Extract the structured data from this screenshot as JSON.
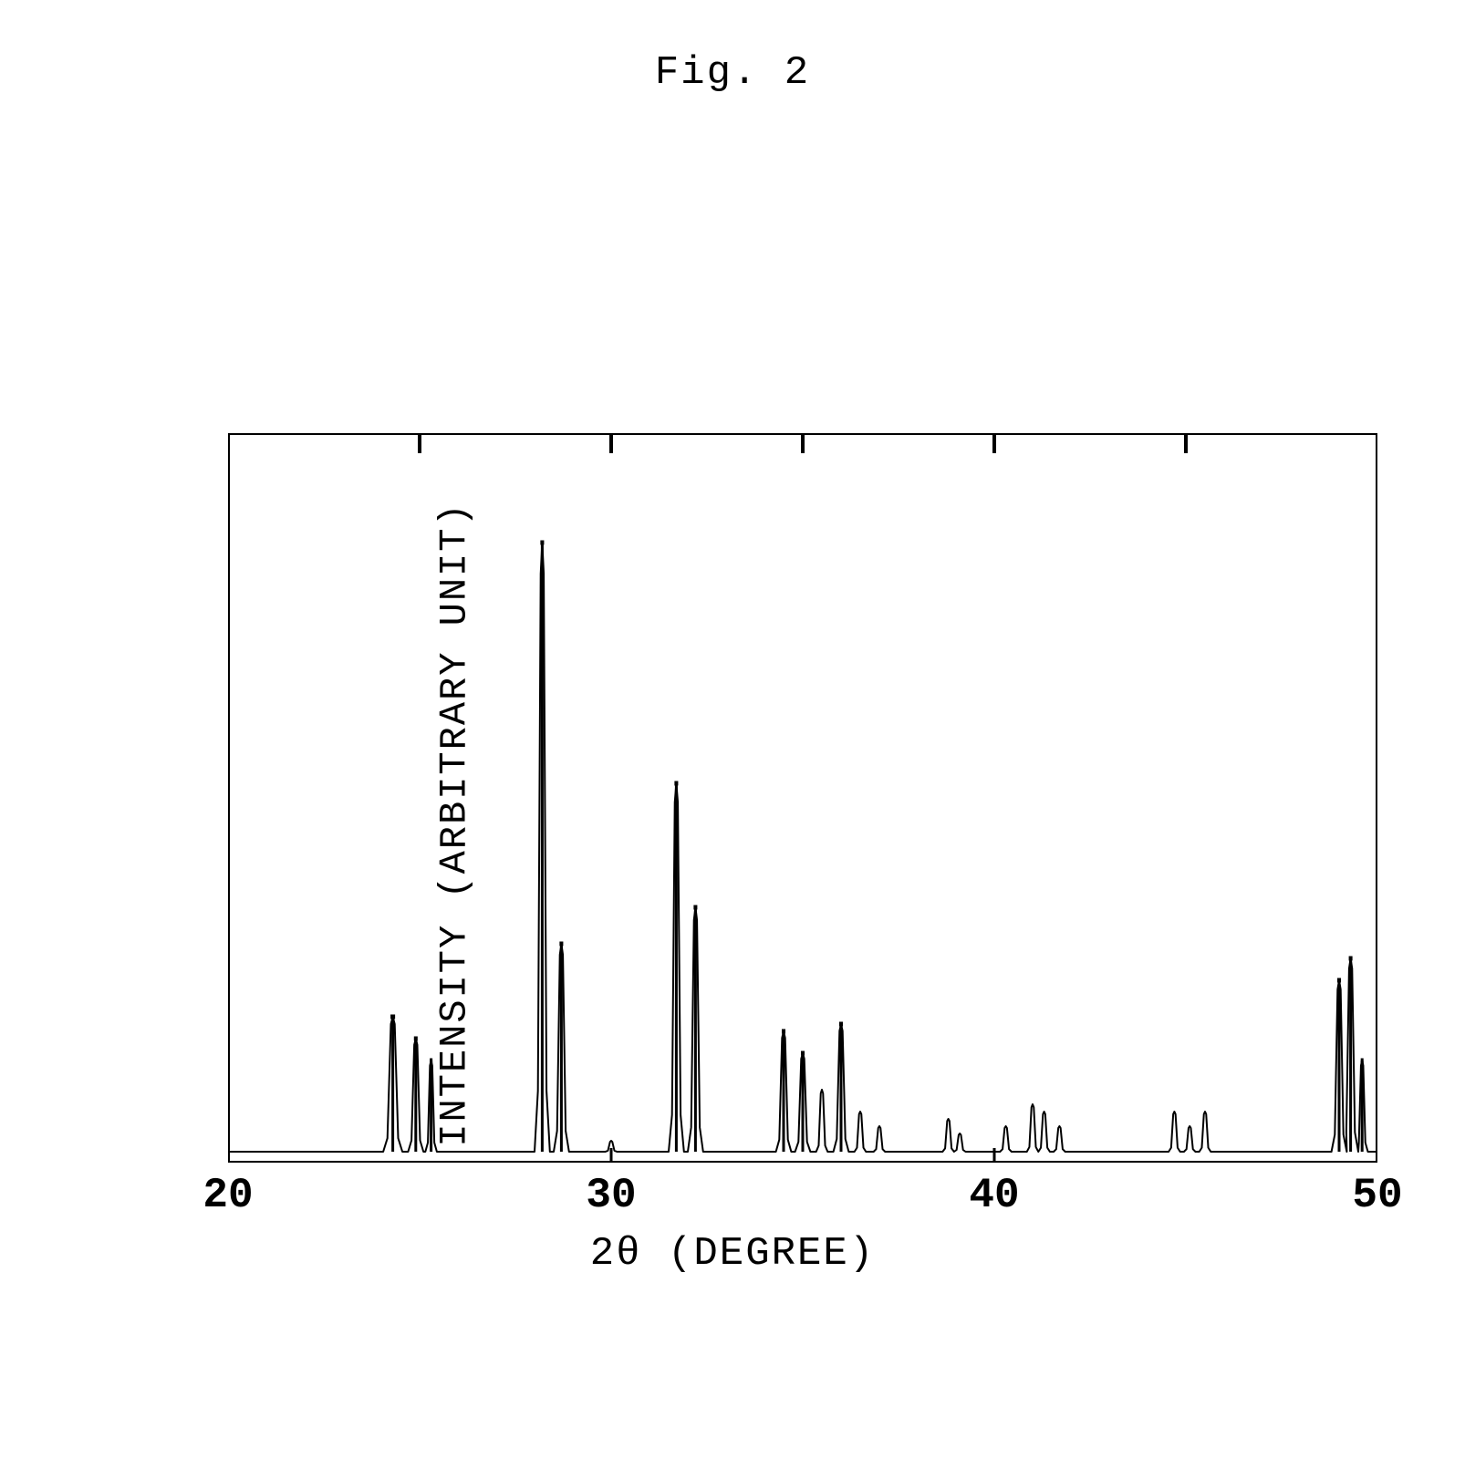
{
  "figure_title": "Fig. 2",
  "chart": {
    "type": "xrd-spectrum",
    "xlabel": "2θ (DEGREE)",
    "ylabel": "INTENSITY (ARBITRARY UNIT)",
    "xlim": [
      20,
      50
    ],
    "ylim": [
      0,
      100
    ],
    "xtick_labels": [
      "20",
      "30",
      "40",
      "50"
    ],
    "xtick_positions": [
      20,
      30,
      40,
      50
    ],
    "top_tick_positions": [
      25,
      30,
      35,
      40,
      45
    ],
    "label_fontsize": 44,
    "tick_fontsize": 46,
    "line_color": "#000000",
    "background_color": "#ffffff",
    "border_width": 4,
    "line_width": 2,
    "peaks": [
      {
        "x": 24.3,
        "intensity": 20,
        "width": 0.5
      },
      {
        "x": 24.9,
        "intensity": 17,
        "width": 0.4
      },
      {
        "x": 25.3,
        "intensity": 14,
        "width": 0.3
      },
      {
        "x": 28.2,
        "intensity": 85,
        "width": 0.4
      },
      {
        "x": 28.7,
        "intensity": 30,
        "width": 0.4
      },
      {
        "x": 30.0,
        "intensity": 3,
        "width": 0.3
      },
      {
        "x": 31.7,
        "intensity": 52,
        "width": 0.4
      },
      {
        "x": 32.2,
        "intensity": 35,
        "width": 0.4
      },
      {
        "x": 34.5,
        "intensity": 18,
        "width": 0.4
      },
      {
        "x": 35.0,
        "intensity": 15,
        "width": 0.4
      },
      {
        "x": 35.5,
        "intensity": 10,
        "width": 0.3
      },
      {
        "x": 36.0,
        "intensity": 19,
        "width": 0.4
      },
      {
        "x": 36.5,
        "intensity": 7,
        "width": 0.3
      },
      {
        "x": 37.0,
        "intensity": 5,
        "width": 0.3
      },
      {
        "x": 38.8,
        "intensity": 6,
        "width": 0.3
      },
      {
        "x": 39.1,
        "intensity": 4,
        "width": 0.3
      },
      {
        "x": 40.3,
        "intensity": 5,
        "width": 0.3
      },
      {
        "x": 41.0,
        "intensity": 8,
        "width": 0.3
      },
      {
        "x": 41.3,
        "intensity": 7,
        "width": 0.3
      },
      {
        "x": 41.7,
        "intensity": 5,
        "width": 0.3
      },
      {
        "x": 44.7,
        "intensity": 7,
        "width": 0.3
      },
      {
        "x": 45.1,
        "intensity": 5,
        "width": 0.3
      },
      {
        "x": 45.5,
        "intensity": 7,
        "width": 0.3
      },
      {
        "x": 49.0,
        "intensity": 25,
        "width": 0.4
      },
      {
        "x": 49.3,
        "intensity": 28,
        "width": 0.4
      },
      {
        "x": 49.6,
        "intensity": 14,
        "width": 0.3
      }
    ],
    "left_stray_ticks": [
      {
        "y": 52
      },
      {
        "y": 47
      },
      {
        "y": 36
      }
    ]
  }
}
